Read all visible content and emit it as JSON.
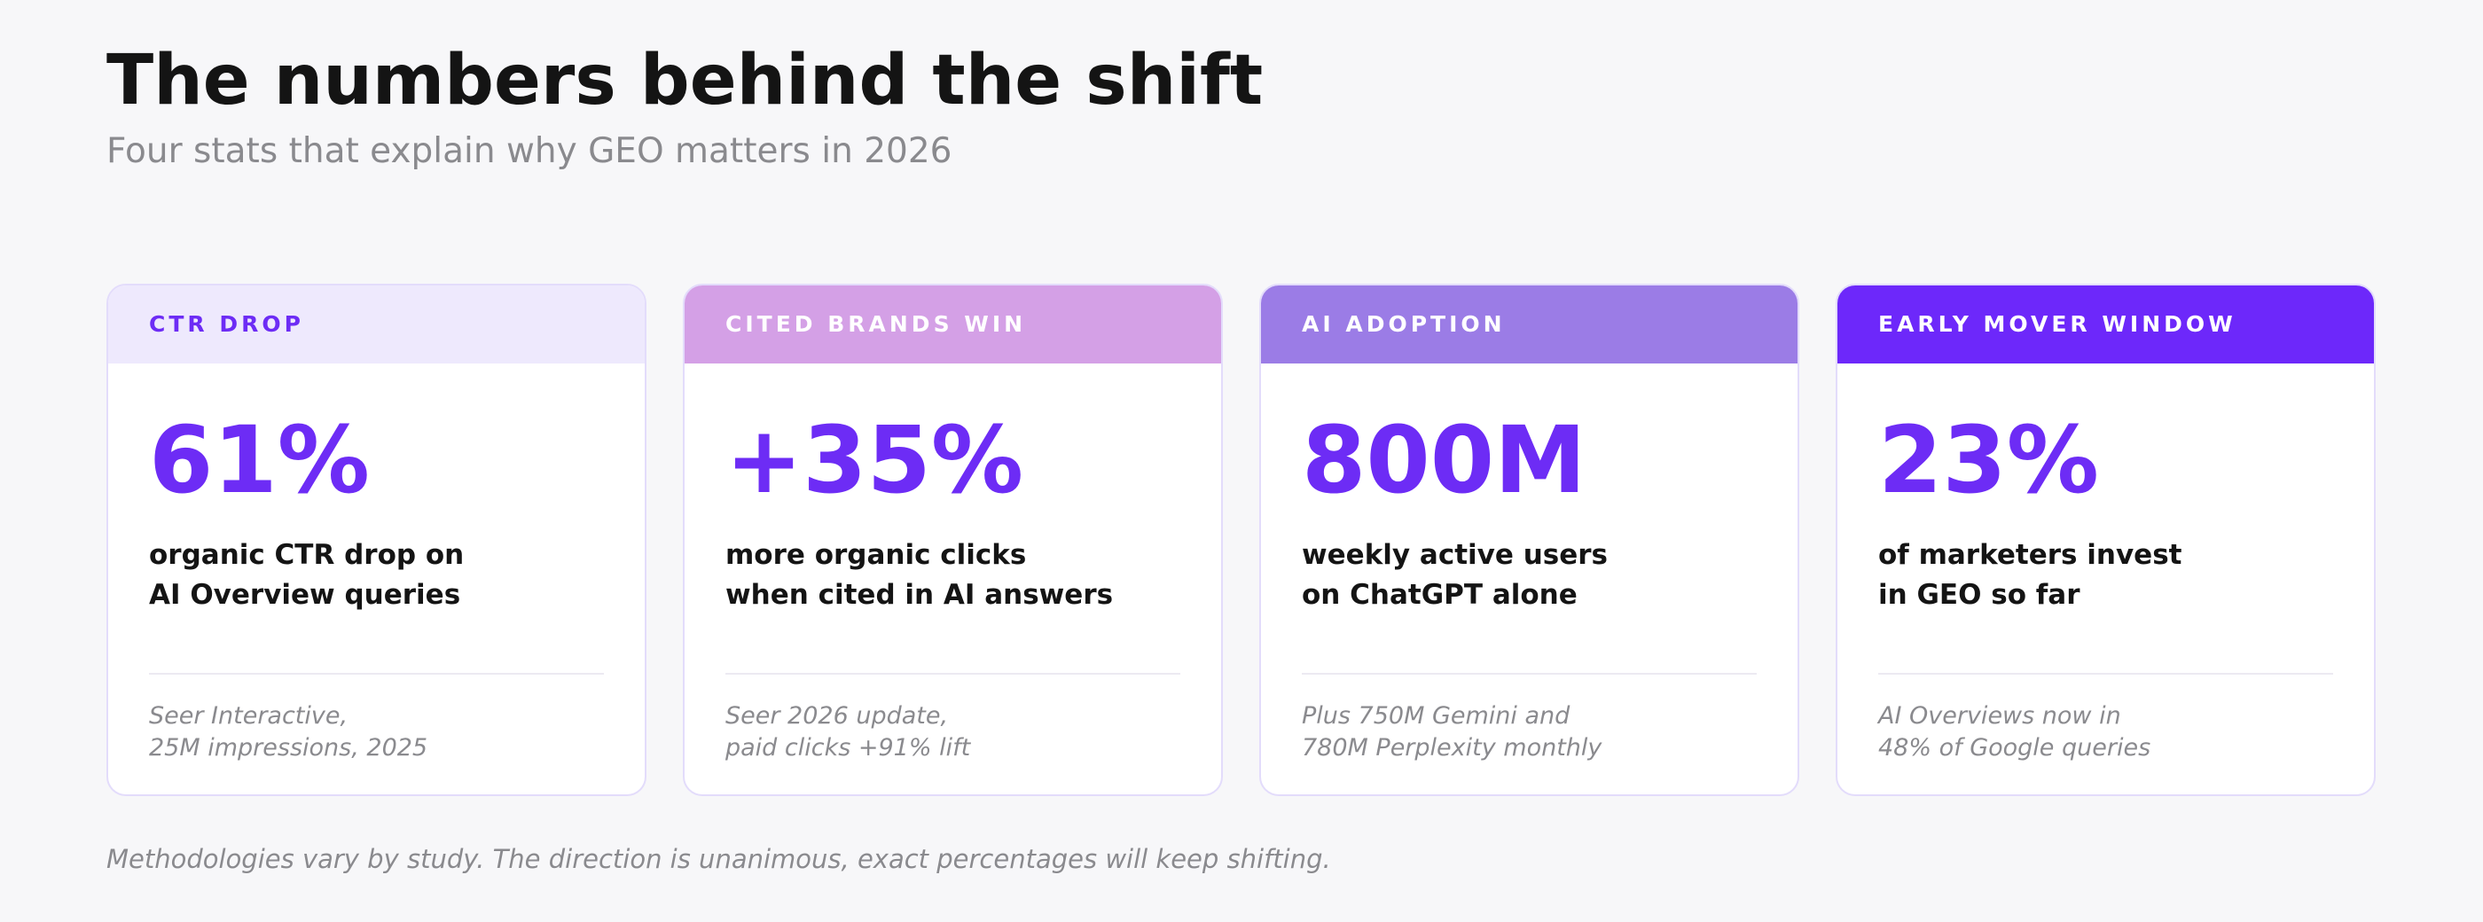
{
  "header": {
    "title": "The numbers behind the shift",
    "subtitle": "Four stats that explain why GEO matters in 2026"
  },
  "cards": [
    {
      "label": "CTR DROP",
      "value": "61%",
      "description": [
        "organic CTR drop on",
        "AI Overview queries"
      ],
      "note": [
        "Seer Interactive,",
        "25M impressions, 2025"
      ]
    },
    {
      "label": "CITED BRANDS WIN",
      "value": "+35%",
      "description": [
        "more organic clicks",
        "when cited in AI answers"
      ],
      "note": [
        "Seer 2026 update,",
        "paid clicks +91% lift"
      ]
    },
    {
      "label": "AI ADOPTION",
      "value": "800M",
      "description": [
        "weekly active users",
        "on ChatGPT alone"
      ],
      "note": [
        "Plus 750M Gemini and",
        "780M Perplexity monthly"
      ]
    },
    {
      "label": "EARLY MOVER WINDOW",
      "value": "23%",
      "description": [
        "of marketers invest",
        "in GEO so far"
      ],
      "note": [
        "AI Overviews now in",
        "48% of Google queries"
      ]
    }
  ],
  "footer": "Methodologies vary by study. The direction is unanimous, exact percentages will keep shifting."
}
